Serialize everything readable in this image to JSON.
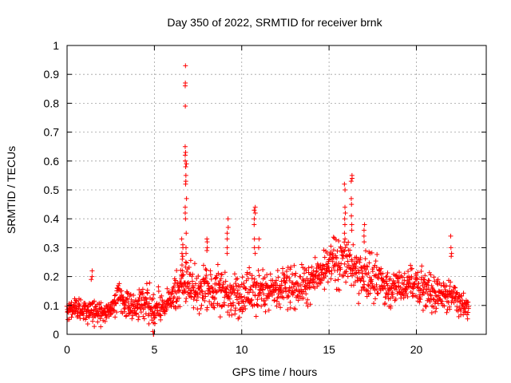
{
  "chart_data": {
    "type": "scatter",
    "title": "Day 350 of 2022, SRMTID for receiver brnk",
    "xlabel": "GPS time / hours",
    "ylabel": "SRMTID / TECUs",
    "xlim": [
      0,
      24
    ],
    "ylim": [
      0,
      1
    ],
    "x_ticks": [
      0,
      5,
      10,
      15,
      20
    ],
    "x_tick_labels": [
      "0",
      "5",
      "10",
      "15",
      "20"
    ],
    "y_ticks": [
      0,
      0.1,
      0.2,
      0.3,
      0.4,
      0.5,
      0.6,
      0.7,
      0.8,
      0.9,
      1
    ],
    "y_tick_labels": [
      "0",
      "0.1",
      "0.2",
      "0.3",
      "0.4",
      "0.5",
      "0.6",
      "0.7",
      "0.8",
      "0.9",
      "1"
    ],
    "grid": true,
    "marker": "+",
    "color": "#ff0000",
    "envelope": {
      "x": [
        0,
        0.5,
        1,
        1.5,
        2,
        2.5,
        3,
        3.5,
        4,
        4.5,
        5,
        5.5,
        6,
        6.5,
        7,
        7.5,
        8,
        8.5,
        9,
        9.5,
        10,
        10.5,
        11,
        11.5,
        12,
        12.5,
        13,
        13.5,
        14,
        14.5,
        15,
        15.5,
        16,
        16.5,
        17,
        17.5,
        18,
        18.5,
        19,
        19.5,
        20,
        20.5,
        21,
        21.5,
        22,
        22.5,
        23
      ],
      "center": [
        0.08,
        0.09,
        0.08,
        0.08,
        0.07,
        0.08,
        0.13,
        0.11,
        0.1,
        0.11,
        0.09,
        0.1,
        0.12,
        0.16,
        0.18,
        0.14,
        0.16,
        0.15,
        0.14,
        0.13,
        0.13,
        0.16,
        0.15,
        0.14,
        0.15,
        0.16,
        0.16,
        0.17,
        0.19,
        0.2,
        0.22,
        0.26,
        0.25,
        0.22,
        0.21,
        0.2,
        0.18,
        0.16,
        0.17,
        0.16,
        0.18,
        0.16,
        0.13,
        0.14,
        0.14,
        0.1,
        0.09
      ],
      "spread": [
        0.03,
        0.03,
        0.03,
        0.04,
        0.03,
        0.03,
        0.05,
        0.04,
        0.04,
        0.05,
        0.05,
        0.05,
        0.05,
        0.07,
        0.07,
        0.05,
        0.06,
        0.06,
        0.06,
        0.06,
        0.06,
        0.07,
        0.06,
        0.06,
        0.06,
        0.06,
        0.06,
        0.06,
        0.06,
        0.06,
        0.07,
        0.08,
        0.08,
        0.07,
        0.07,
        0.07,
        0.06,
        0.06,
        0.06,
        0.05,
        0.06,
        0.06,
        0.05,
        0.05,
        0.05,
        0.04,
        0.03
      ],
      "x_start": 0,
      "x_end": 23.0,
      "point_count": 1500
    },
    "bursts": [
      {
        "x": 6.8,
        "values": [
          0.93,
          0.87,
          0.86,
          0.79,
          0.65,
          0.63,
          0.62,
          0.6,
          0.59,
          0.58,
          0.55,
          0.53,
          0.52,
          0.47,
          0.44,
          0.42,
          0.4,
          0.35,
          0.3,
          0.28,
          0.25
        ]
      },
      {
        "x": 6.6,
        "values": [
          0.33,
          0.31,
          0.3,
          0.28,
          0.27,
          0.26,
          0.24,
          0.22
        ]
      },
      {
        "x": 10.75,
        "values": [
          0.44,
          0.43,
          0.42,
          0.4,
          0.38,
          0.33,
          0.3,
          0.28
        ]
      },
      {
        "x": 9.2,
        "values": [
          0.4,
          0.37,
          0.35,
          0.33,
          0.3,
          0.28
        ]
      },
      {
        "x": 16.3,
        "values": [
          0.55,
          0.54,
          0.53,
          0.47,
          0.45,
          0.41,
          0.38,
          0.36
        ]
      },
      {
        "x": 15.9,
        "values": [
          0.52,
          0.5,
          0.44,
          0.42,
          0.4,
          0.38,
          0.35,
          0.33,
          0.3
        ]
      },
      {
        "x": 17.0,
        "values": [
          0.38,
          0.36,
          0.34,
          0.32
        ]
      },
      {
        "x": 22.0,
        "values": [
          0.34,
          0.3,
          0.28,
          0.27
        ]
      },
      {
        "x": 8.0,
        "values": [
          0.33,
          0.32,
          0.3,
          0.29
        ]
      },
      {
        "x": 4.95,
        "values": [
          0.0,
          0.0,
          0.01,
          0.04
        ]
      },
      {
        "x": 1.4,
        "values": [
          0.22,
          0.2,
          0.19
        ]
      },
      {
        "x": 11.0,
        "values": [
          0.33,
          0.3
        ]
      }
    ]
  }
}
